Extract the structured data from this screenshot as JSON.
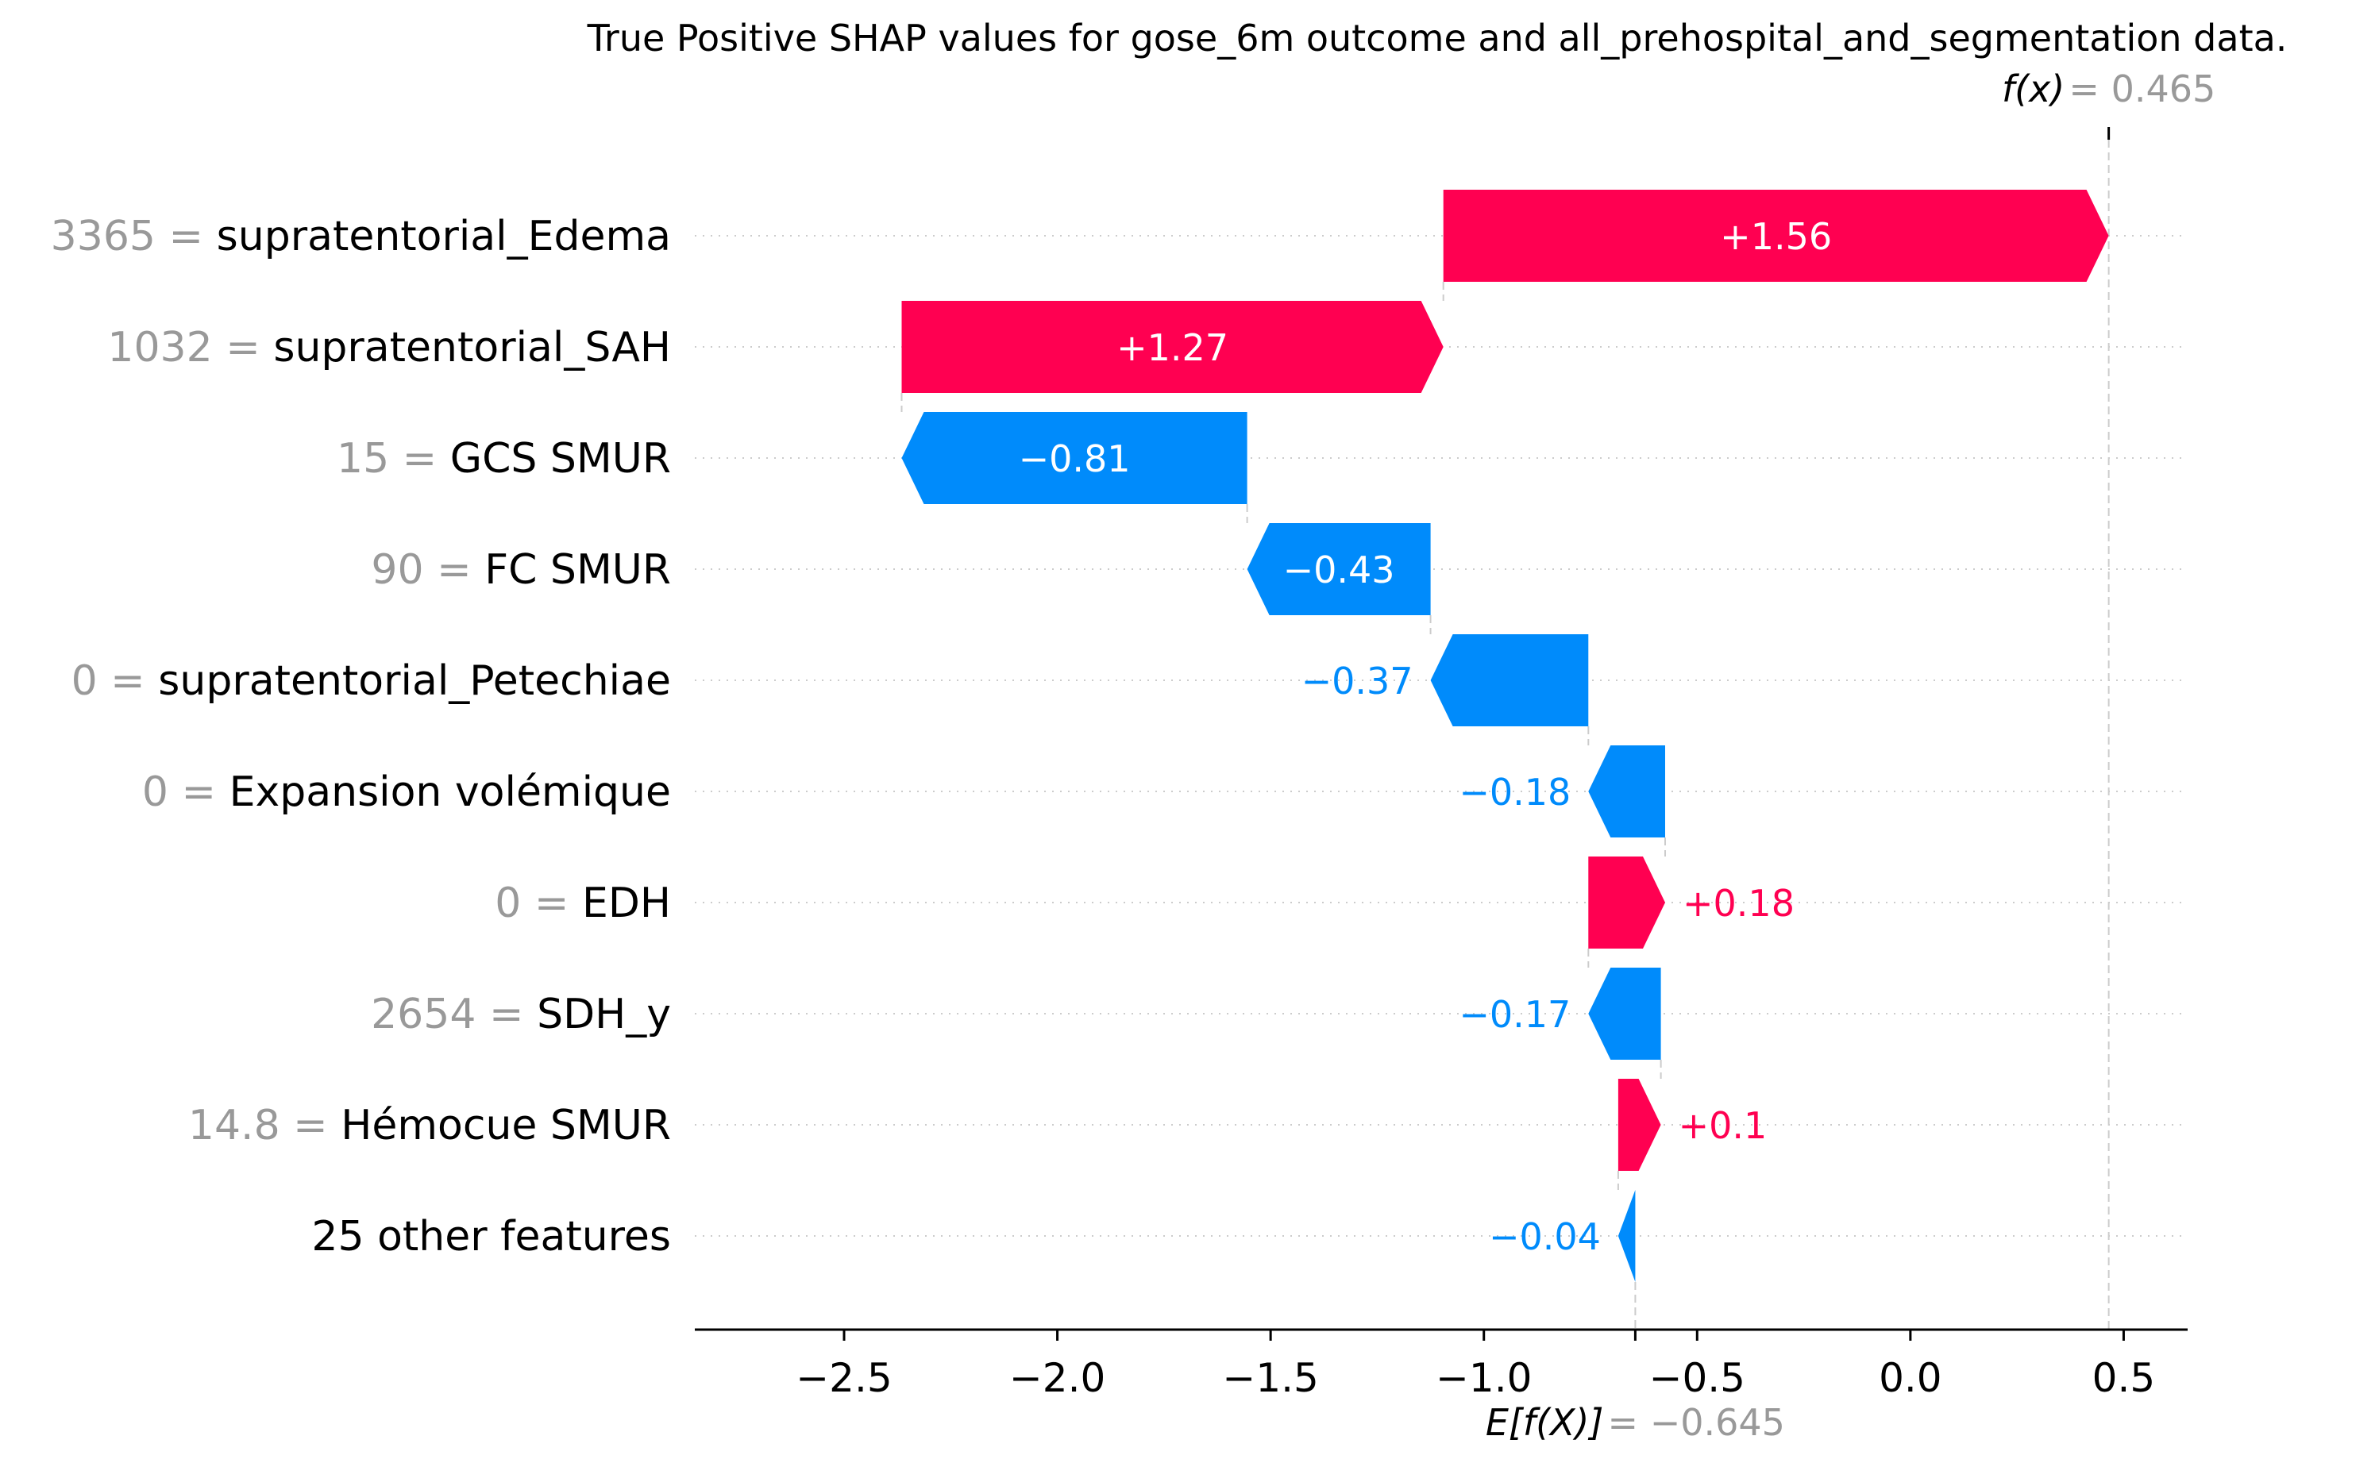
{
  "chart_data": {
    "type": "waterfall",
    "title": "True Positive SHAP values for gose_6m outcome and all_prehospital_and_segmentation data.",
    "base_value": {
      "label": "E[f(X)]",
      "value": -0.645,
      "text": "−0.645"
    },
    "output_value": {
      "label": "f(x)",
      "value": 0.465,
      "text": "0.465"
    },
    "xlim": [
      -2.85,
      0.65
    ],
    "xticks": [
      {
        "value": -2.5,
        "label": "−2.5"
      },
      {
        "value": -2.0,
        "label": "−2.0"
      },
      {
        "value": -1.5,
        "label": "−1.5"
      },
      {
        "value": -1.0,
        "label": "−1.0"
      },
      {
        "value": -0.5,
        "label": "−0.5"
      },
      {
        "value": 0.0,
        "label": "0.0"
      },
      {
        "value": 0.5,
        "label": "0.5"
      }
    ],
    "features": [
      {
        "value_text": "3365 =",
        "name": "supratentorial_Edema",
        "start": -1.095,
        "end": 0.465,
        "shap": 1.56,
        "label": "+1.56"
      },
      {
        "value_text": "1032 =",
        "name": "supratentorial_SAH",
        "start": -2.365,
        "end": -1.095,
        "shap": 1.27,
        "label": "+1.27"
      },
      {
        "value_text": "15 =",
        "name": "GCS SMUR",
        "start": -1.555,
        "end": -2.365,
        "shap": -0.81,
        "label": "−0.81"
      },
      {
        "value_text": "90 =",
        "name": "FC SMUR",
        "start": -1.125,
        "end": -1.555,
        "shap": -0.43,
        "label": "−0.43"
      },
      {
        "value_text": "0 =",
        "name": "supratentorial_Petechiae",
        "start": -0.755,
        "end": -1.125,
        "shap": -0.37,
        "label": "−0.37"
      },
      {
        "value_text": "0 =",
        "name": "Expansion volémique",
        "start": -0.575,
        "end": -0.755,
        "shap": -0.18,
        "label": "−0.18"
      },
      {
        "value_text": "0 =",
        "name": "EDH",
        "start": -0.755,
        "end": -0.575,
        "shap": 0.18,
        "label": "+0.18"
      },
      {
        "value_text": "2654 =",
        "name": "SDH_y",
        "start": -0.585,
        "end": -0.755,
        "shap": -0.17,
        "label": "−0.17"
      },
      {
        "value_text": "14.8 =",
        "name": "Hémocue SMUR",
        "start": -0.685,
        "end": -0.585,
        "shap": 0.1,
        "label": "+0.1"
      },
      {
        "value_text": "",
        "name": "25 other features",
        "start": -0.645,
        "end": -0.685,
        "shap": -0.04,
        "label": "−0.04"
      }
    ],
    "colors": {
      "positive": "#ff0051",
      "negative": "#008bfb",
      "grid": "#cccccc",
      "muted": "#999999"
    }
  }
}
